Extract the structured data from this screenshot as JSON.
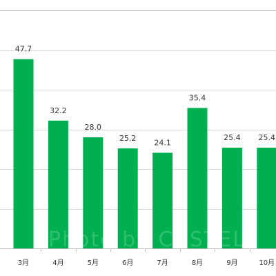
{
  "chart_data": {
    "type": "bar",
    "categories": [
      "3月",
      "4月",
      "5月",
      "6月",
      "7月",
      "8月",
      "9月",
      "10月"
    ],
    "values": [
      47.7,
      32.2,
      28.0,
      25.2,
      24.1,
      35.4,
      25.4,
      25.4
    ],
    "data_labels": [
      "47.7",
      "32.2",
      "28.0",
      "25.2",
      "24.1",
      "35.4",
      "25.4",
      "25.4"
    ],
    "ylim": [
      0,
      60
    ],
    "grid": true,
    "bar_color": "#00b050",
    "gridline_color": "#d9d9d9",
    "axis_color": "#bfbfbf"
  },
  "watermark": {
    "text": "Photo by CASTEL"
  }
}
